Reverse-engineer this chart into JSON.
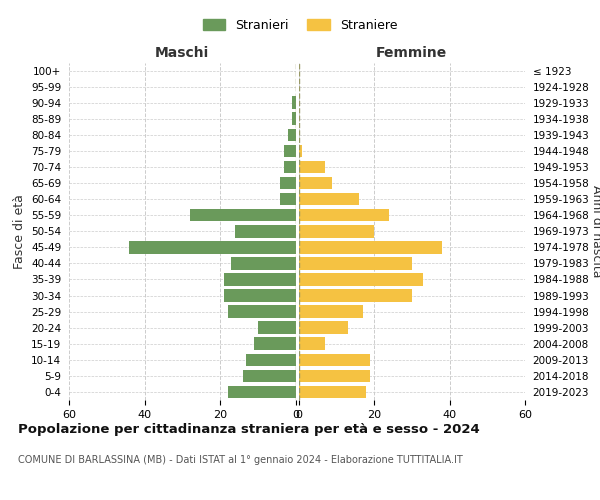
{
  "age_groups": [
    "0-4",
    "5-9",
    "10-14",
    "15-19",
    "20-24",
    "25-29",
    "30-34",
    "35-39",
    "40-44",
    "45-49",
    "50-54",
    "55-59",
    "60-64",
    "65-69",
    "70-74",
    "75-79",
    "80-84",
    "85-89",
    "90-94",
    "95-99",
    "100+"
  ],
  "birth_years": [
    "2019-2023",
    "2014-2018",
    "2009-2013",
    "2004-2008",
    "1999-2003",
    "1994-1998",
    "1989-1993",
    "1984-1988",
    "1979-1983",
    "1974-1978",
    "1969-1973",
    "1964-1968",
    "1959-1963",
    "1954-1958",
    "1949-1953",
    "1944-1948",
    "1939-1943",
    "1934-1938",
    "1929-1933",
    "1924-1928",
    "≤ 1923"
  ],
  "maschi": [
    18,
    14,
    13,
    11,
    10,
    18,
    19,
    19,
    17,
    44,
    16,
    28,
    4,
    4,
    3,
    3,
    2,
    1,
    1,
    0,
    0
  ],
  "femmine": [
    18,
    19,
    19,
    7,
    13,
    17,
    30,
    33,
    30,
    38,
    20,
    24,
    16,
    9,
    7,
    1,
    0,
    0,
    0,
    0,
    0
  ],
  "male_color": "#6a9a5b",
  "female_color": "#f5c242",
  "xlim": 60,
  "title": "Popolazione per cittadinanza straniera per età e sesso - 2024",
  "subtitle": "COMUNE DI BARLASSINA (MB) - Dati ISTAT al 1° gennaio 2024 - Elaborazione TUTTITALIA.IT",
  "legend_maschi": "Stranieri",
  "legend_femmine": "Straniere",
  "label_maschi": "Maschi",
  "label_femmine": "Femmine",
  "ylabel_left": "Fasce di età",
  "ylabel_right": "Anni di nascita",
  "bg_color": "#ffffff",
  "grid_color": "#cccccc",
  "xticks": [
    0,
    20,
    40,
    60
  ]
}
